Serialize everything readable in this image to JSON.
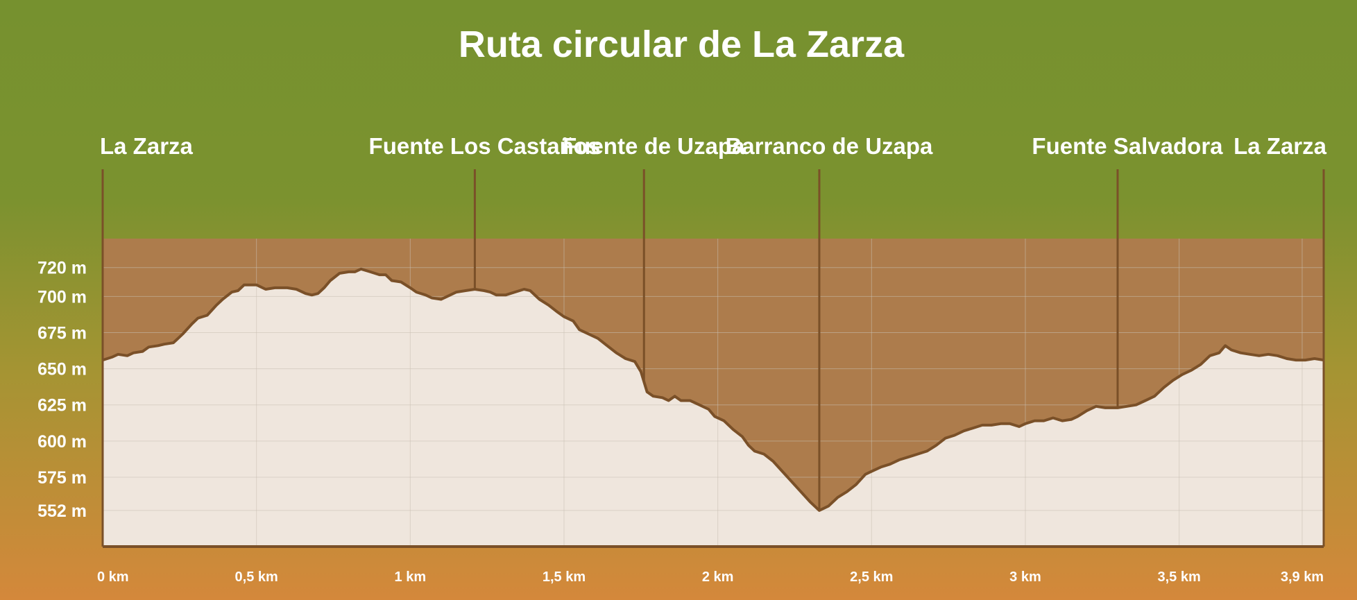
{
  "chart_data": {
    "type": "area",
    "title": "Ruta circular de La Zarza",
    "xlabel": "",
    "ylabel": "",
    "xlim": [
      0,
      3.97
    ],
    "ylim": [
      527,
      740
    ],
    "grid": true,
    "x_ticks": [
      {
        "value": 0,
        "label": "0 km"
      },
      {
        "value": 0.5,
        "label": "0,5 km"
      },
      {
        "value": 1,
        "label": "1 km"
      },
      {
        "value": 1.5,
        "label": "1,5 km"
      },
      {
        "value": 2,
        "label": "2 km"
      },
      {
        "value": 2.5,
        "label": "2,5 km"
      },
      {
        "value": 3,
        "label": "3 km"
      },
      {
        "value": 3.5,
        "label": "3,5 km"
      },
      {
        "value": 3.9,
        "label": "3,9 km"
      }
    ],
    "y_ticks": [
      {
        "value": 720,
        "label": "720 m"
      },
      {
        "value": 700,
        "label": "700 m"
      },
      {
        "value": 675,
        "label": "675 m"
      },
      {
        "value": 650,
        "label": "650 m"
      },
      {
        "value": 625,
        "label": "625 m"
      },
      {
        "value": 600,
        "label": "600 m"
      },
      {
        "value": 575,
        "label": "575 m"
      },
      {
        "value": 552,
        "label": "552 m"
      }
    ],
    "waypoints": [
      {
        "name": "La Zarza",
        "x": 0
      },
      {
        "name": "Fuente Los Castaños",
        "x": 1.21
      },
      {
        "name": "Fuente de Uzapa",
        "x": 1.76
      },
      {
        "name": "Barranco de Uzapa",
        "x": 2.33
      },
      {
        "name": "Fuente Salvadora",
        "x": 3.3
      },
      {
        "name": "La Zarza",
        "x": 3.97
      }
    ],
    "series": [
      {
        "points": [
          [
            0,
            656
          ],
          [
            0.03,
            658
          ],
          [
            0.05,
            660
          ],
          [
            0.08,
            659
          ],
          [
            0.1,
            661
          ],
          [
            0.13,
            662
          ],
          [
            0.15,
            665
          ],
          [
            0.18,
            666
          ],
          [
            0.2,
            667
          ],
          [
            0.23,
            668
          ],
          [
            0.26,
            674
          ],
          [
            0.29,
            681
          ],
          [
            0.31,
            685
          ],
          [
            0.34,
            687
          ],
          [
            0.37,
            694
          ],
          [
            0.39,
            698
          ],
          [
            0.42,
            703
          ],
          [
            0.44,
            704
          ],
          [
            0.46,
            708
          ],
          [
            0.5,
            708
          ],
          [
            0.53,
            705
          ],
          [
            0.56,
            706
          ],
          [
            0.6,
            706
          ],
          [
            0.63,
            705
          ],
          [
            0.66,
            702
          ],
          [
            0.68,
            701
          ],
          [
            0.7,
            702
          ],
          [
            0.72,
            706
          ],
          [
            0.74,
            711
          ],
          [
            0.77,
            716
          ],
          [
            0.8,
            717
          ],
          [
            0.82,
            717
          ],
          [
            0.84,
            719
          ],
          [
            0.87,
            717
          ],
          [
            0.9,
            715
          ],
          [
            0.92,
            715
          ],
          [
            0.94,
            711
          ],
          [
            0.97,
            710
          ],
          [
            1.0,
            706
          ],
          [
            1.02,
            703
          ],
          [
            1.05,
            701
          ],
          [
            1.07,
            699
          ],
          [
            1.1,
            698
          ],
          [
            1.12,
            700
          ],
          [
            1.15,
            703
          ],
          [
            1.18,
            704
          ],
          [
            1.21,
            705
          ],
          [
            1.24,
            704
          ],
          [
            1.26,
            703
          ],
          [
            1.28,
            701
          ],
          [
            1.31,
            701
          ],
          [
            1.34,
            703
          ],
          [
            1.37,
            705
          ],
          [
            1.39,
            704
          ],
          [
            1.42,
            698
          ],
          [
            1.45,
            694
          ],
          [
            1.48,
            689
          ],
          [
            1.5,
            686
          ],
          [
            1.53,
            683
          ],
          [
            1.55,
            677
          ],
          [
            1.58,
            674
          ],
          [
            1.61,
            671
          ],
          [
            1.64,
            666
          ],
          [
            1.67,
            661
          ],
          [
            1.7,
            657
          ],
          [
            1.73,
            655
          ],
          [
            1.75,
            648
          ],
          [
            1.77,
            634
          ],
          [
            1.79,
            631
          ],
          [
            1.82,
            630
          ],
          [
            1.84,
            628
          ],
          [
            1.86,
            631
          ],
          [
            1.88,
            628
          ],
          [
            1.91,
            628
          ],
          [
            1.94,
            625
          ],
          [
            1.97,
            622
          ],
          [
            1.99,
            617
          ],
          [
            2.02,
            614
          ],
          [
            2.05,
            608
          ],
          [
            2.08,
            603
          ],
          [
            2.1,
            597
          ],
          [
            2.12,
            593
          ],
          [
            2.15,
            591
          ],
          [
            2.18,
            586
          ],
          [
            2.21,
            579
          ],
          [
            2.24,
            572
          ],
          [
            2.27,
            565
          ],
          [
            2.3,
            558
          ],
          [
            2.33,
            552
          ],
          [
            2.36,
            555
          ],
          [
            2.39,
            561
          ],
          [
            2.42,
            565
          ],
          [
            2.45,
            570
          ],
          [
            2.48,
            577
          ],
          [
            2.5,
            579
          ],
          [
            2.53,
            582
          ],
          [
            2.56,
            584
          ],
          [
            2.59,
            587
          ],
          [
            2.62,
            589
          ],
          [
            2.65,
            591
          ],
          [
            2.68,
            593
          ],
          [
            2.71,
            597
          ],
          [
            2.74,
            602
          ],
          [
            2.77,
            604
          ],
          [
            2.8,
            607
          ],
          [
            2.83,
            609
          ],
          [
            2.86,
            611
          ],
          [
            2.89,
            611
          ],
          [
            2.92,
            612
          ],
          [
            2.95,
            612
          ],
          [
            2.98,
            610
          ],
          [
            3.0,
            612
          ],
          [
            3.03,
            614
          ],
          [
            3.06,
            614
          ],
          [
            3.09,
            616
          ],
          [
            3.12,
            614
          ],
          [
            3.15,
            615
          ],
          [
            3.17,
            617
          ],
          [
            3.2,
            621
          ],
          [
            3.23,
            624
          ],
          [
            3.26,
            623
          ],
          [
            3.3,
            623
          ],
          [
            3.33,
            624
          ],
          [
            3.36,
            625
          ],
          [
            3.39,
            628
          ],
          [
            3.42,
            631
          ],
          [
            3.45,
            637
          ],
          [
            3.48,
            642
          ],
          [
            3.51,
            646
          ],
          [
            3.54,
            649
          ],
          [
            3.57,
            653
          ],
          [
            3.6,
            659
          ],
          [
            3.63,
            661
          ],
          [
            3.65,
            666
          ],
          [
            3.67,
            663
          ],
          [
            3.7,
            661
          ],
          [
            3.73,
            660
          ],
          [
            3.76,
            659
          ],
          [
            3.79,
            660
          ],
          [
            3.82,
            659
          ],
          [
            3.85,
            657
          ],
          [
            3.88,
            656
          ],
          [
            3.91,
            656
          ],
          [
            3.94,
            657
          ],
          [
            3.97,
            656
          ]
        ]
      }
    ]
  },
  "colors": {
    "bg_top": "#76912f",
    "bg_mid": "#8a9632",
    "bg_bottom": "#d0883a",
    "panel": "#ad7c4c",
    "profile_fill": "#efe6dd",
    "profile_stroke": "#7a5028",
    "grid": "#c9bfb3",
    "axis": "#7a5028",
    "text": "#ffffff"
  }
}
